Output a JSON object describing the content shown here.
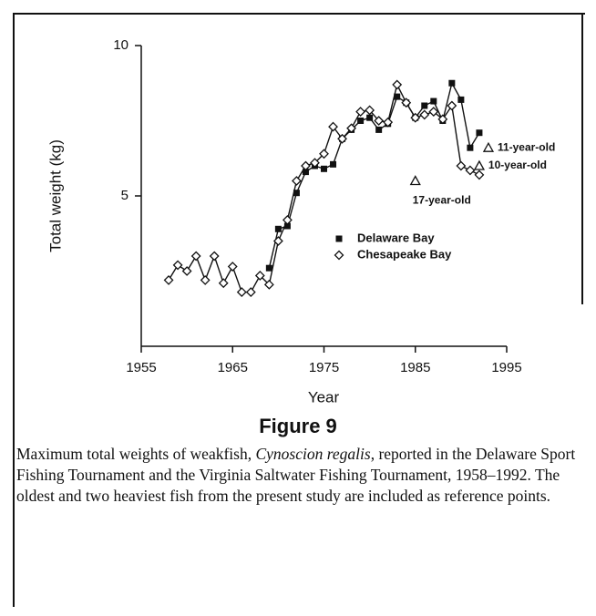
{
  "chart_data": {
    "type": "line",
    "figure_label": "Figure 9",
    "caption": [
      "Maximum total weights of weakfish, ",
      "Cynoscion regalis",
      ", reported in the Delaware Sport Fishing Tournament and the Virginia Saltwater Fishing Tournament, 1958–1992. The oldest and two heaviest fish from the present study are included as reference points."
    ],
    "x_label": "Year",
    "y_label": "Total weight (kg)",
    "x": [
      1958,
      1959,
      1960,
      1961,
      1962,
      1963,
      1964,
      1965,
      1966,
      1967,
      1968,
      1969,
      1970,
      1971,
      1972,
      1973,
      1974,
      1975,
      1976,
      1977,
      1978,
      1979,
      1980,
      1981,
      1982,
      1983,
      1984,
      1985,
      1986,
      1987,
      1988,
      1989,
      1990,
      1991,
      1992
    ],
    "series": [
      {
        "name": "Delaware Bay",
        "color": "#111111",
        "marker": "square",
        "values": [
          null,
          null,
          null,
          null,
          null,
          null,
          null,
          null,
          null,
          null,
          null,
          2.6,
          3.9,
          4.0,
          5.1,
          5.8,
          6.0,
          5.9,
          6.05,
          6.9,
          7.2,
          7.5,
          7.6,
          7.2,
          7.4,
          8.3,
          8.1,
          7.6,
          8.0,
          8.15,
          7.5,
          8.75,
          8.2,
          6.6,
          7.1
        ]
      },
      {
        "name": "Chesapeake Bay",
        "color": "#111111",
        "marker": "diamond",
        "values": [
          2.2,
          2.7,
          2.5,
          3.0,
          2.2,
          3.0,
          2.1,
          2.65,
          1.8,
          1.8,
          2.35,
          2.05,
          3.5,
          4.2,
          5.5,
          6.0,
          6.1,
          6.4,
          7.3,
          6.9,
          7.25,
          7.8,
          7.85,
          7.5,
          7.45,
          8.7,
          8.1,
          7.6,
          7.7,
          7.8,
          7.55,
          8.0,
          6.0,
          5.85,
          5.7
        ]
      }
    ],
    "reference_points": [
      {
        "label": "11-year-old",
        "x": 1993,
        "y": 6.6
      },
      {
        "label": "10-year-old",
        "x": 1992,
        "y": 6.0
      },
      {
        "label": "17-year-old",
        "x": 1985,
        "y": 5.5
      }
    ],
    "xlim": [
      1955,
      1995
    ],
    "xticks": [
      1955,
      1965,
      1975,
      1985,
      1995
    ],
    "ylim": [
      0,
      10
    ],
    "yticks": [
      5,
      10
    ]
  }
}
